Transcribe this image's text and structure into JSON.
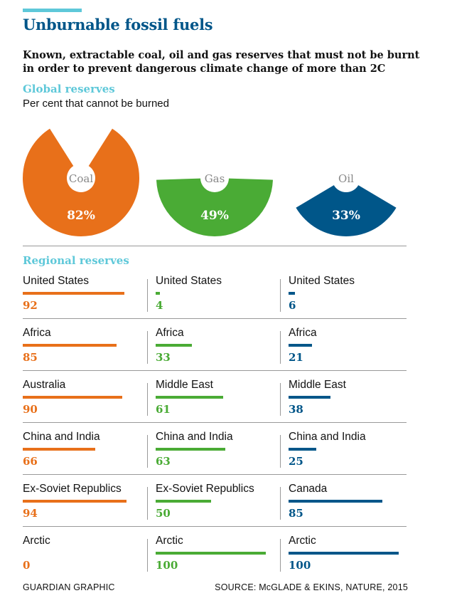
{
  "header": {
    "title": "Unburnable fossil fuels",
    "subtitle": "Known, extractable coal, oil and gas reserves that must not be burnt in order  to prevent dangerous climate change of more than 2C"
  },
  "colors": {
    "coal": "#e8701a",
    "gas": "#4aab35",
    "oil": "#005689",
    "accent": "#5ec8d9",
    "title": "#005689"
  },
  "chart_data": [
    {
      "type": "pie",
      "title": "Global reserves",
      "subtitle": "Per cent that cannot be burned",
      "unit": "%",
      "slices": [
        {
          "name": "Coal",
          "value": 82,
          "label": "82%"
        },
        {
          "name": "Gas",
          "value": 49,
          "label": "49%"
        },
        {
          "name": "Oil",
          "value": 33,
          "label": "33%"
        }
      ]
    },
    {
      "type": "bar",
      "title": "Regional reserves",
      "series": [
        {
          "name": "Coal",
          "categories": [
            "United States",
            "Africa",
            "Australia",
            "China and India",
            "Ex-Soviet Republics",
            "Arctic"
          ],
          "values": [
            92,
            85,
            90,
            66,
            94,
            0
          ]
        },
        {
          "name": "Gas",
          "categories": [
            "United States",
            "Africa",
            "Middle East",
            "China and India",
            "Ex-Soviet Republics",
            "Arctic"
          ],
          "values": [
            4,
            33,
            61,
            63,
            50,
            100
          ]
        },
        {
          "name": "Oil",
          "categories": [
            "United States",
            "Africa",
            "Middle East",
            "China and India",
            "Canada",
            "Arctic"
          ],
          "values": [
            6,
            21,
            38,
            25,
            85,
            100
          ]
        }
      ]
    }
  ],
  "footer": {
    "credit": "GUARDIAN GRAPHIC",
    "source": "SOURCE: McGLADE & EKINS, NATURE, 2015"
  }
}
